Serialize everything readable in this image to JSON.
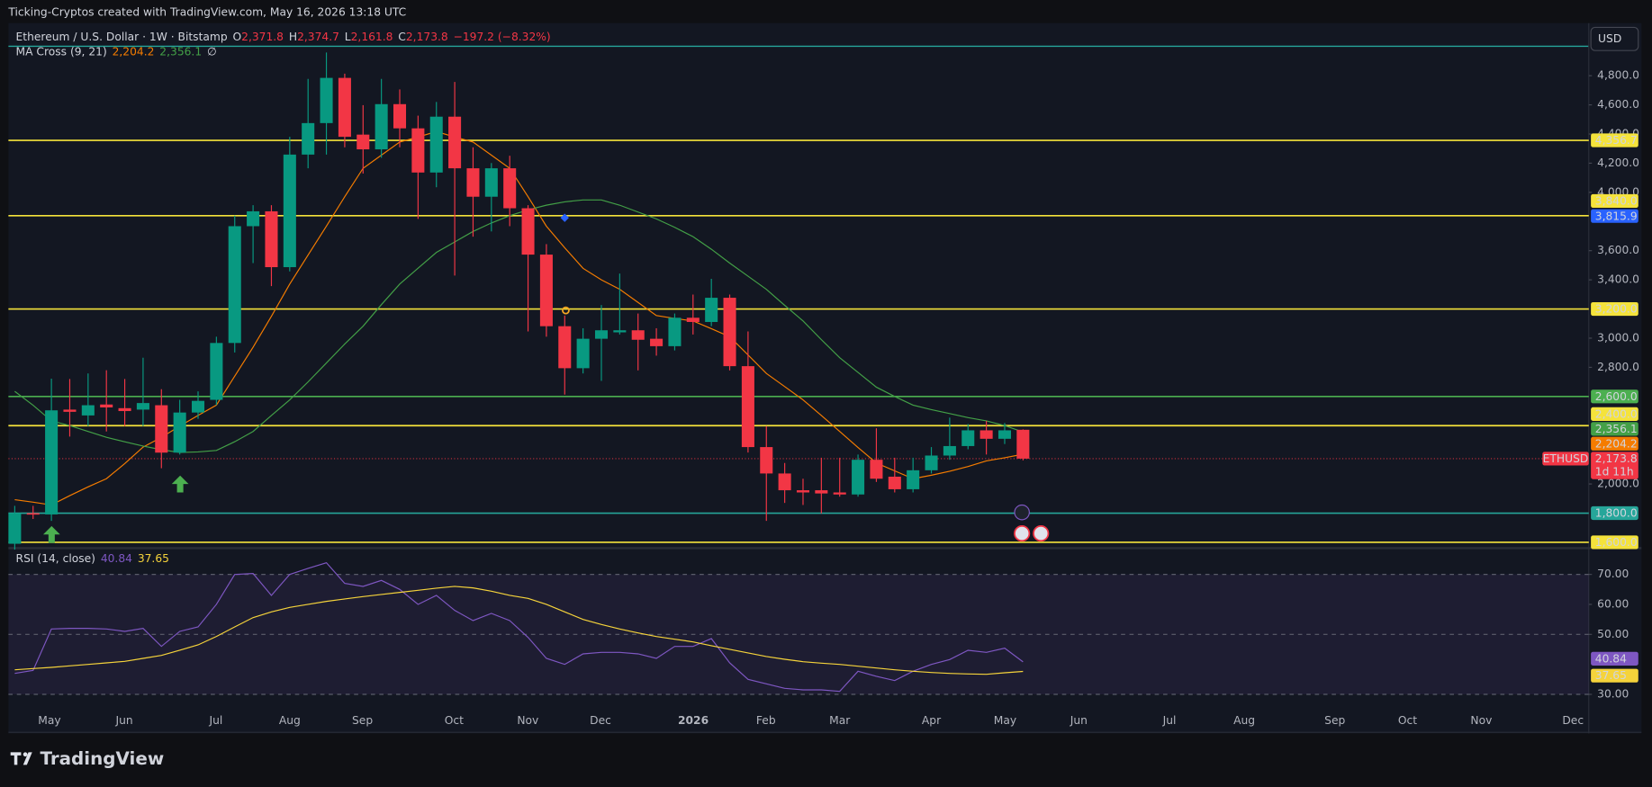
{
  "header": {
    "attribution": "Ticking-Cryptos created with TradingView.com, May 16, 2026 13:18 UTC"
  },
  "currency": "USD",
  "brand": "TradingView",
  "chart_data": [
    {
      "type": "candlestick",
      "title": "Ethereum / U.S. Dollar · 1W · Bitstamp",
      "ohlc_keys": [
        "O",
        "H",
        "L",
        "C"
      ],
      "ohlc_labels": [
        "2,371.8",
        "2,374.7",
        "2,161.8",
        "2,173.8"
      ],
      "change": "−197.2 (−8.32%)",
      "up_color": "#089981",
      "down_color": "#f23645",
      "candles": {
        "open": [
          1590,
          1800,
          1791,
          2510,
          2470,
          2545,
          2520,
          2510,
          2540,
          2215,
          2490,
          2577,
          2967,
          3768,
          3870,
          3487,
          4259,
          4475,
          4785,
          4396,
          4295,
          4605,
          4439,
          4136,
          4519,
          4165,
          3970,
          4165,
          3891,
          3573,
          3082,
          2794,
          2996,
          3040,
          3054,
          2996,
          2945,
          3140,
          3111,
          3277,
          2808,
          2253,
          2072,
          1957,
          1957,
          1942,
          1928,
          2166,
          2050,
          1964,
          2094,
          2195,
          2260,
          2368,
          2310,
          2371.8
        ],
        "high": [
          1850,
          1850,
          2722,
          2720,
          2758,
          2780,
          2720,
          2866,
          2650,
          2577,
          2635,
          3010,
          3840,
          3912,
          3912,
          4381,
          4778,
          4959,
          4814,
          4598,
          4778,
          4706,
          4526,
          4620,
          4757,
          4309,
          4201,
          4251,
          3912,
          3645,
          3155,
          3068,
          3227,
          3443,
          3169,
          3068,
          3169,
          3299,
          3407,
          3299,
          3046,
          2397,
          2144,
          2036,
          2180,
          2180,
          2202,
          2382,
          2180,
          2180,
          2253,
          2455,
          2411,
          2433,
          2418,
          2374.7
        ],
        "low": [
          1550,
          1760,
          1747,
          2325,
          2397,
          2360,
          2397,
          2397,
          2108,
          2202,
          2447,
          2541,
          2902,
          3515,
          3357,
          3458,
          4165,
          4259,
          4309,
          4129,
          4237,
          4309,
          3818,
          4035,
          3429,
          3696,
          3732,
          3768,
          3046,
          3010,
          2613,
          2758,
          2707,
          3025,
          2779,
          2880,
          2916,
          3025,
          3082,
          2779,
          2216,
          1747,
          1870,
          1856,
          1798,
          1913,
          1913,
          2014,
          1942,
          1942,
          2072,
          2166,
          2238,
          2202,
          2274,
          2161.8
        ],
        "close": [
          1800,
          1790,
          2505,
          2495,
          2540,
          2525,
          2500,
          2555,
          2215,
          2490,
          2570,
          2967,
          3768,
          3870,
          3487,
          4259,
          4475,
          4785,
          4381,
          4295,
          4605,
          4439,
          4136,
          4519,
          4165,
          3970,
          4165,
          3891,
          3573,
          3082,
          2794,
          2996,
          3054,
          3054,
          2989,
          2945,
          3140,
          3111,
          3277,
          2808,
          2253,
          2072,
          1957,
          1942,
          1935,
          1928,
          2166,
          2036,
          1964,
          2094,
          2195,
          2260,
          2368,
          2310,
          2368,
          2173.8
        ]
      },
      "indicator": {
        "name": "MA Cross (9, 21)",
        "suffix": "∅",
        "series": [
          {
            "color": "#f57c00",
            "value_label": "2,204.2",
            "values": [
              1892,
              1875,
              1856,
              1920,
              1980,
              2036,
              2140,
              2253,
              2320,
              2397,
              2470,
              2541,
              2740,
              2938,
              3150,
              3371,
              3570,
              3768,
              3970,
              4165,
              4255,
              4345,
              4380,
              4417,
              4380,
              4345,
              4255,
              4165,
              3970,
              3768,
              3620,
              3479,
              3400,
              3335,
              3245,
              3155,
              3135,
              3118,
              3065,
              3010,
              2885,
              2758,
              2668,
              2577,
              2470,
              2360,
              2250,
              2144,
              2090,
              2036,
              2060,
              2087,
              2120,
              2158,
              2180,
              2204.2
            ]
          },
          {
            "color": "#43a047",
            "value_label": "2,356.1",
            "values": [
              2635,
              2540,
              2433,
              2400,
              2360,
              2320,
              2289,
              2260,
              2235,
              2216,
              2220,
              2230,
              2290,
              2360,
              2470,
              2577,
              2700,
              2830,
              2960,
              3082,
              3230,
              3371,
              3480,
              3588,
              3660,
              3732,
              3790,
              3840,
              3880,
              3912,
              3935,
              3948,
              3948,
              3912,
              3865,
              3818,
              3760,
              3696,
              3610,
              3515,
              3425,
              3335,
              3225,
              3118,
              2990,
              2866,
              2765,
              2664,
              2600,
              2541,
              2510,
              2483,
              2455,
              2433,
              2400,
              2356.1
            ]
          }
        ]
      },
      "levels": [
        {
          "value": 4356.7,
          "label": "4,356.7",
          "color": "#f5e33b"
        },
        {
          "value": 3840.0,
          "label": "3,840.0",
          "color": "#f5e33b"
        },
        {
          "value": 3200.0,
          "label": "3,200.0",
          "color": "#f5e33b"
        },
        {
          "value": 2600.0,
          "label": "2,600.0",
          "color": "#4caf50"
        },
        {
          "value": 2400.0,
          "label": "2,400.0",
          "color": "#f5e33b"
        },
        {
          "value": 1800.0,
          "label": "1,800.0",
          "color": "#26a69a"
        },
        {
          "value": 1600.0,
          "label": "1,600.0",
          "color": "#f5e33b"
        }
      ],
      "markers": [
        {
          "value": 3815.9,
          "label": "3,815.9",
          "color": "#2962ff"
        }
      ],
      "last": {
        "symbol": "ETHUSD",
        "value": 2173.8,
        "label": "2,173.8",
        "countdown": "1d 11h"
      },
      "ylim": [
        1567,
        5146
      ],
      "yticks": [
        {
          "value": 2000,
          "label": "2,000.0"
        },
        {
          "value": 2800,
          "label": "2,800.0"
        },
        {
          "value": 3000,
          "label": "3,000.0"
        },
        {
          "value": 3400,
          "label": "3,400.0"
        },
        {
          "value": 3600,
          "label": "3,600.0"
        },
        {
          "value": 4000,
          "label": "4,000.0"
        },
        {
          "value": 4200,
          "label": "4,200.0"
        },
        {
          "value": 4400,
          "label": "4,400.0"
        },
        {
          "value": 4600,
          "label": "4,600.0"
        },
        {
          "value": 4800,
          "label": "4,800.0"
        }
      ],
      "months": [
        "May",
        "Jun",
        "Jul",
        "Aug",
        "Sep",
        "Oct",
        "Nov",
        "Dec",
        "2026",
        "Feb",
        "Mar",
        "Apr",
        "May",
        "Jun",
        "Jul",
        "Aug",
        "Sep",
        "Oct",
        "Nov",
        "Dec"
      ]
    },
    {
      "type": "line",
      "title": "RSI (14, close)",
      "series": [
        {
          "color": "#7e57c2",
          "value_label": "40.84",
          "values": [
            37,
            38,
            51.8,
            52,
            52,
            51.8,
            51,
            52,
            46,
            51,
            52.5,
            60,
            70,
            70.3,
            63,
            70,
            72,
            73.9,
            67,
            66,
            68,
            65,
            60,
            63,
            58,
            54.6,
            57,
            54.6,
            49,
            42,
            40,
            43.5,
            44,
            44,
            43.5,
            42,
            46,
            46,
            48.6,
            40.5,
            35,
            33.5,
            32,
            31.5,
            31.5,
            31,
            37.7,
            36,
            34.6,
            37.7,
            40,
            41.6,
            44.7,
            44,
            45.4,
            40.84
          ]
        },
        {
          "color": "#f5d33b",
          "value_label": "37.65",
          "values": [
            38.2,
            38.6,
            39,
            39.5,
            40,
            40.5,
            41,
            42,
            43,
            44.7,
            46.5,
            49.3,
            52.5,
            55.6,
            57.5,
            59,
            60,
            61,
            61.8,
            62.6,
            63.3,
            64,
            64.7,
            65.4,
            66,
            65.5,
            64.4,
            63,
            62,
            60,
            57.5,
            55,
            53.3,
            51.8,
            50.5,
            49.3,
            48.4,
            47.5,
            46.2,
            45,
            43.8,
            42.6,
            41.7,
            40.9,
            40.4,
            40,
            39.4,
            38.8,
            38.2,
            37.7,
            37.3,
            37,
            36.8,
            36.7,
            37.2,
            37.65
          ]
        }
      ],
      "bands": [
        70,
        50,
        30
      ],
      "ylim": [
        17.7,
        78.4
      ],
      "yticks": [
        {
          "value": 70,
          "label": "70.00"
        },
        {
          "value": 60,
          "label": "60.00"
        },
        {
          "value": 50,
          "label": "50.00"
        },
        {
          "value": 30,
          "label": "30.00"
        }
      ]
    }
  ]
}
